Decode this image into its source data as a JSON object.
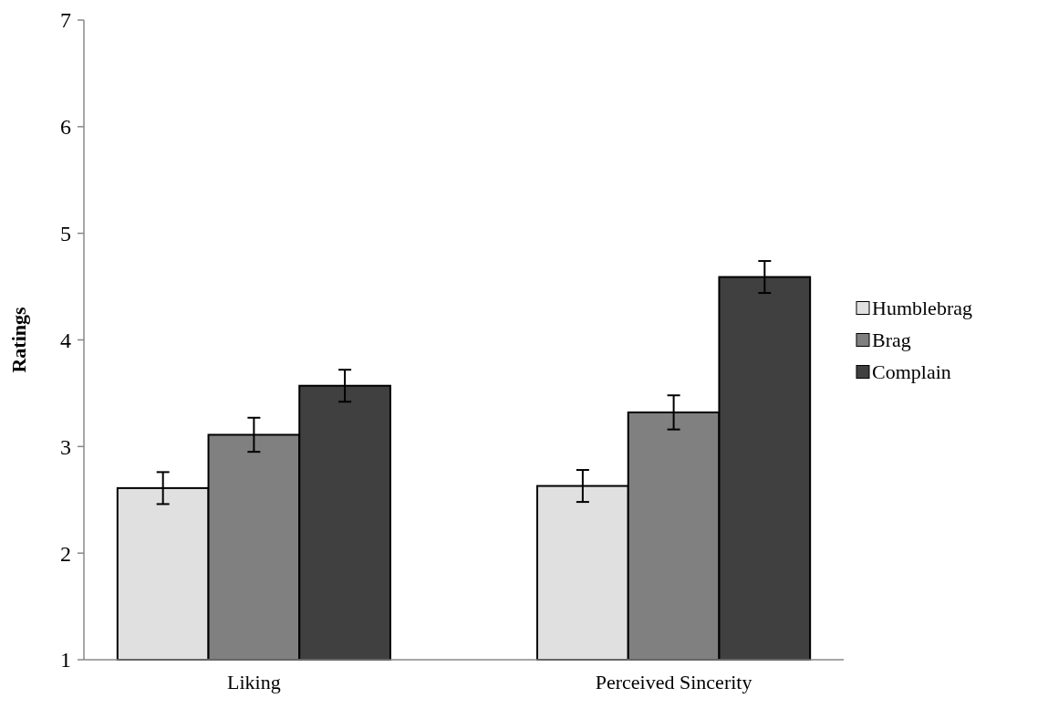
{
  "chart_data": {
    "type": "bar",
    "ylabel": "Ratings",
    "categories": [
      "Liking",
      "Perceived Sincerity"
    ],
    "series": [
      {
        "name": "Humblebrag",
        "color": "#e0e0e0",
        "values": [
          2.61,
          2.63
        ],
        "errors": [
          0.15,
          0.15
        ]
      },
      {
        "name": "Brag",
        "color": "#808080",
        "values": [
          3.11,
          3.32
        ],
        "errors": [
          0.16,
          0.16
        ]
      },
      {
        "name": "Complain",
        "color": "#404040",
        "values": [
          3.57,
          4.59
        ],
        "errors": [
          0.15,
          0.15
        ]
      }
    ],
    "ylim": [
      1,
      7
    ],
    "yticks": [
      1,
      2,
      3,
      4,
      5,
      6,
      7
    ],
    "grid": false,
    "legend": "right"
  }
}
